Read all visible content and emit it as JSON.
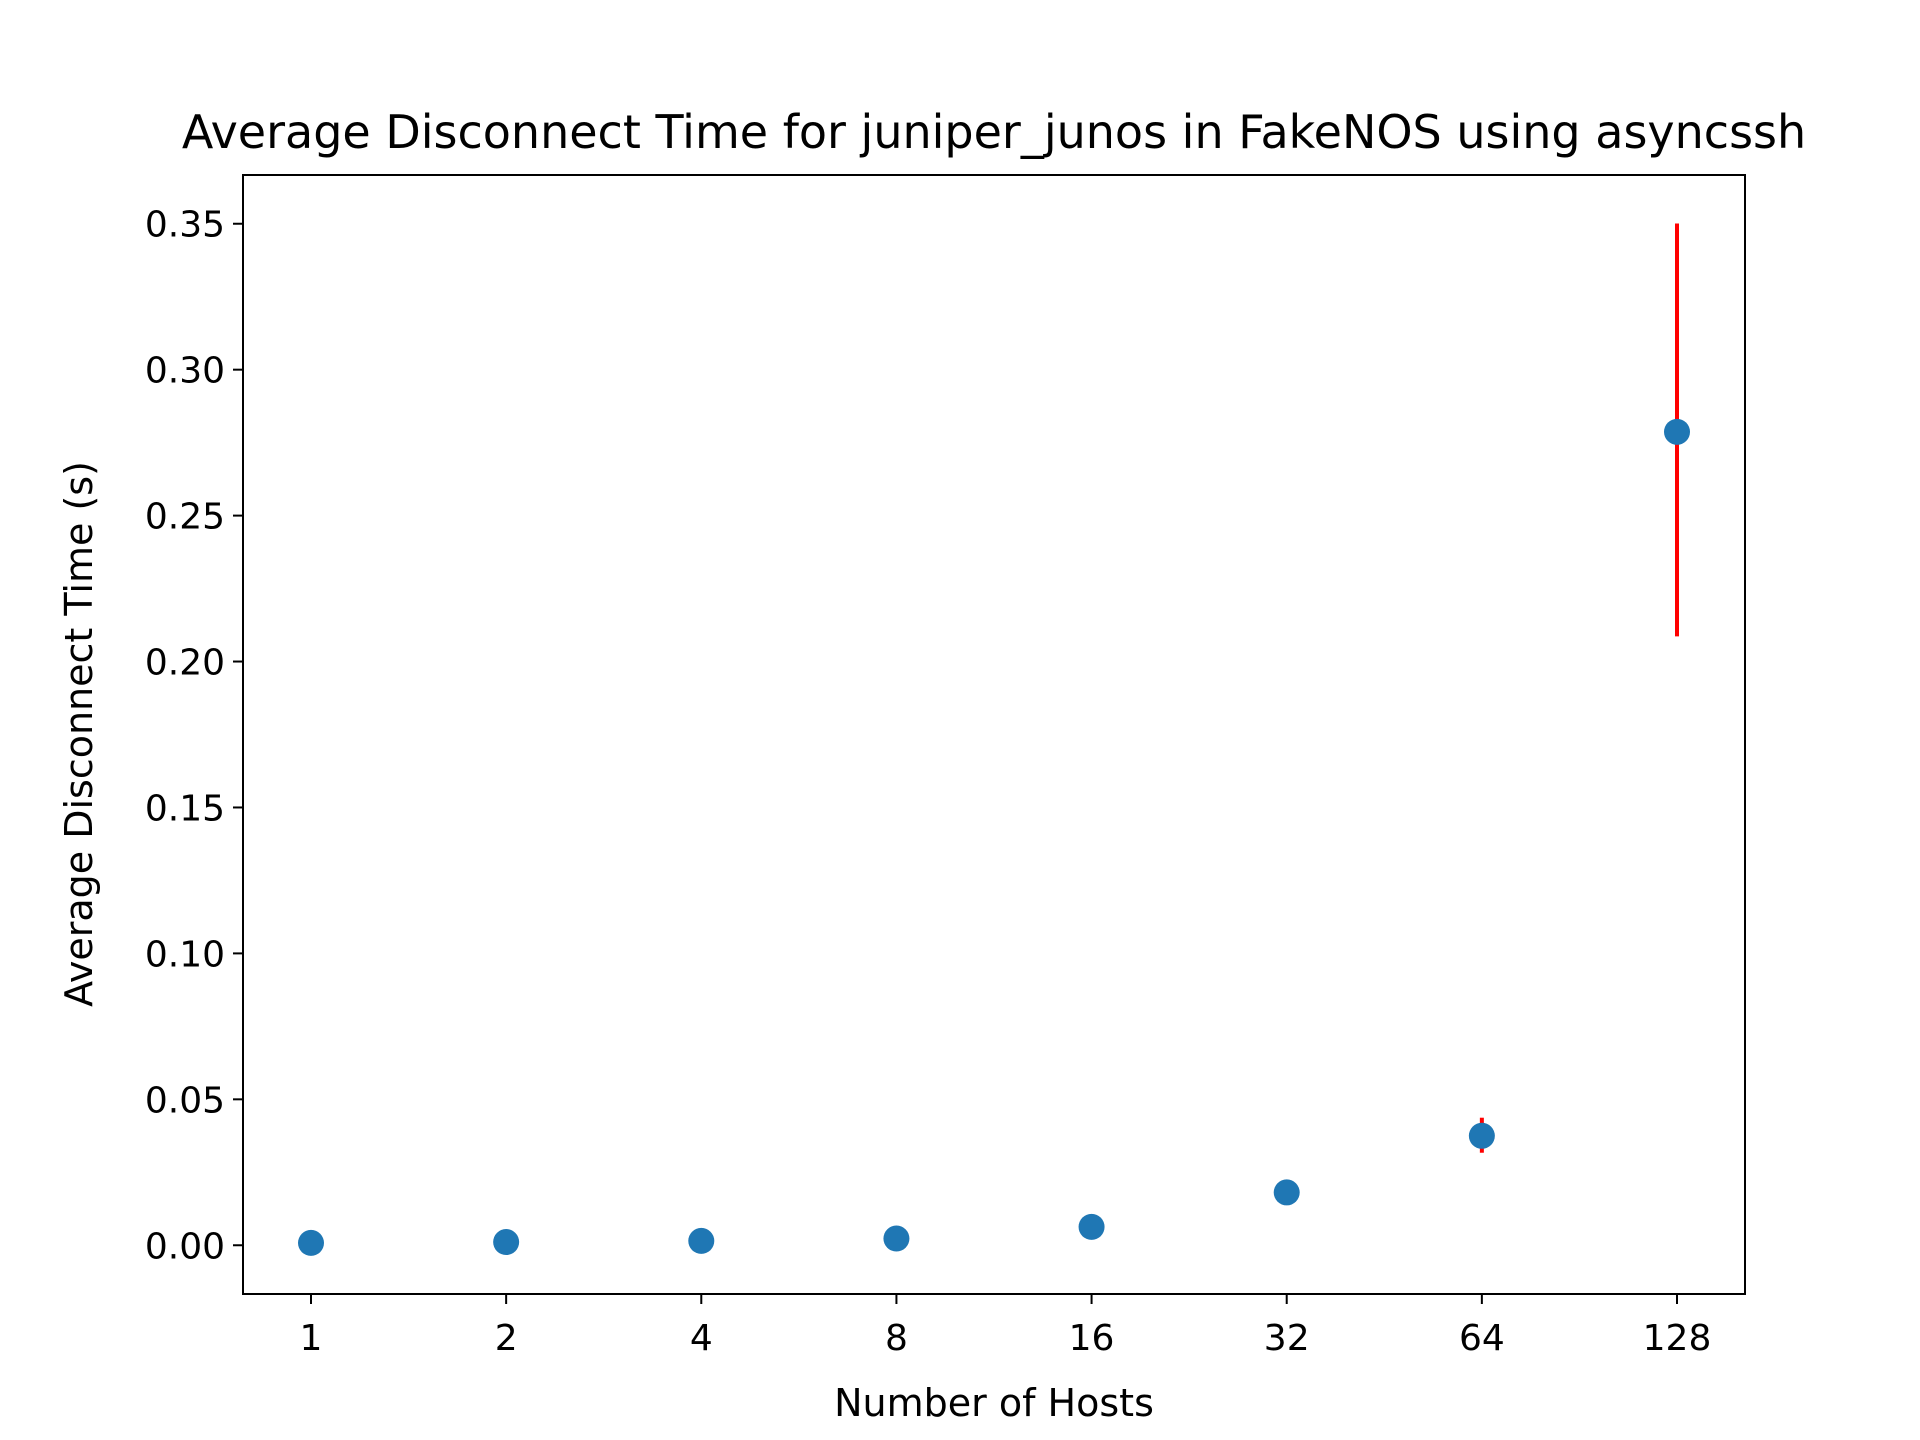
{
  "chart_data": {
    "type": "scatter",
    "title": "Average Disconnect Time for juniper_junos in FakeNOS using asyncssh",
    "xlabel": "Number of Hosts",
    "ylabel": "Average Disconnect Time (s)",
    "x_scale": "log2",
    "categories": [
      "1",
      "2",
      "4",
      "8",
      "16",
      "32",
      "64",
      "128"
    ],
    "x": [
      1,
      2,
      4,
      8,
      16,
      32,
      64,
      128
    ],
    "y": [
      0.0008,
      0.0011,
      0.0015,
      0.0023,
      0.0063,
      0.0181,
      0.0375,
      0.2787
    ],
    "error_low": [
      0.0008,
      0.0011,
      0.0015,
      0.0023,
      0.0063,
      0.0181,
      0.0317,
      0.2086
    ],
    "error_high": [
      0.0008,
      0.0011,
      0.0015,
      0.0023,
      0.0063,
      0.0181,
      0.0437,
      0.3501
    ],
    "ylim": [
      -0.0167,
      0.3667
    ],
    "yticks": [
      0.0,
      0.05,
      0.1,
      0.15,
      0.2,
      0.25,
      0.3,
      0.35
    ],
    "ytick_labels": [
      "0.00",
      "0.05",
      "0.10",
      "0.15",
      "0.20",
      "0.25",
      "0.30",
      "0.35"
    ],
    "marker_color": "#1f77b4",
    "error_color": "#ff0000",
    "grid": false,
    "legend": "none"
  }
}
